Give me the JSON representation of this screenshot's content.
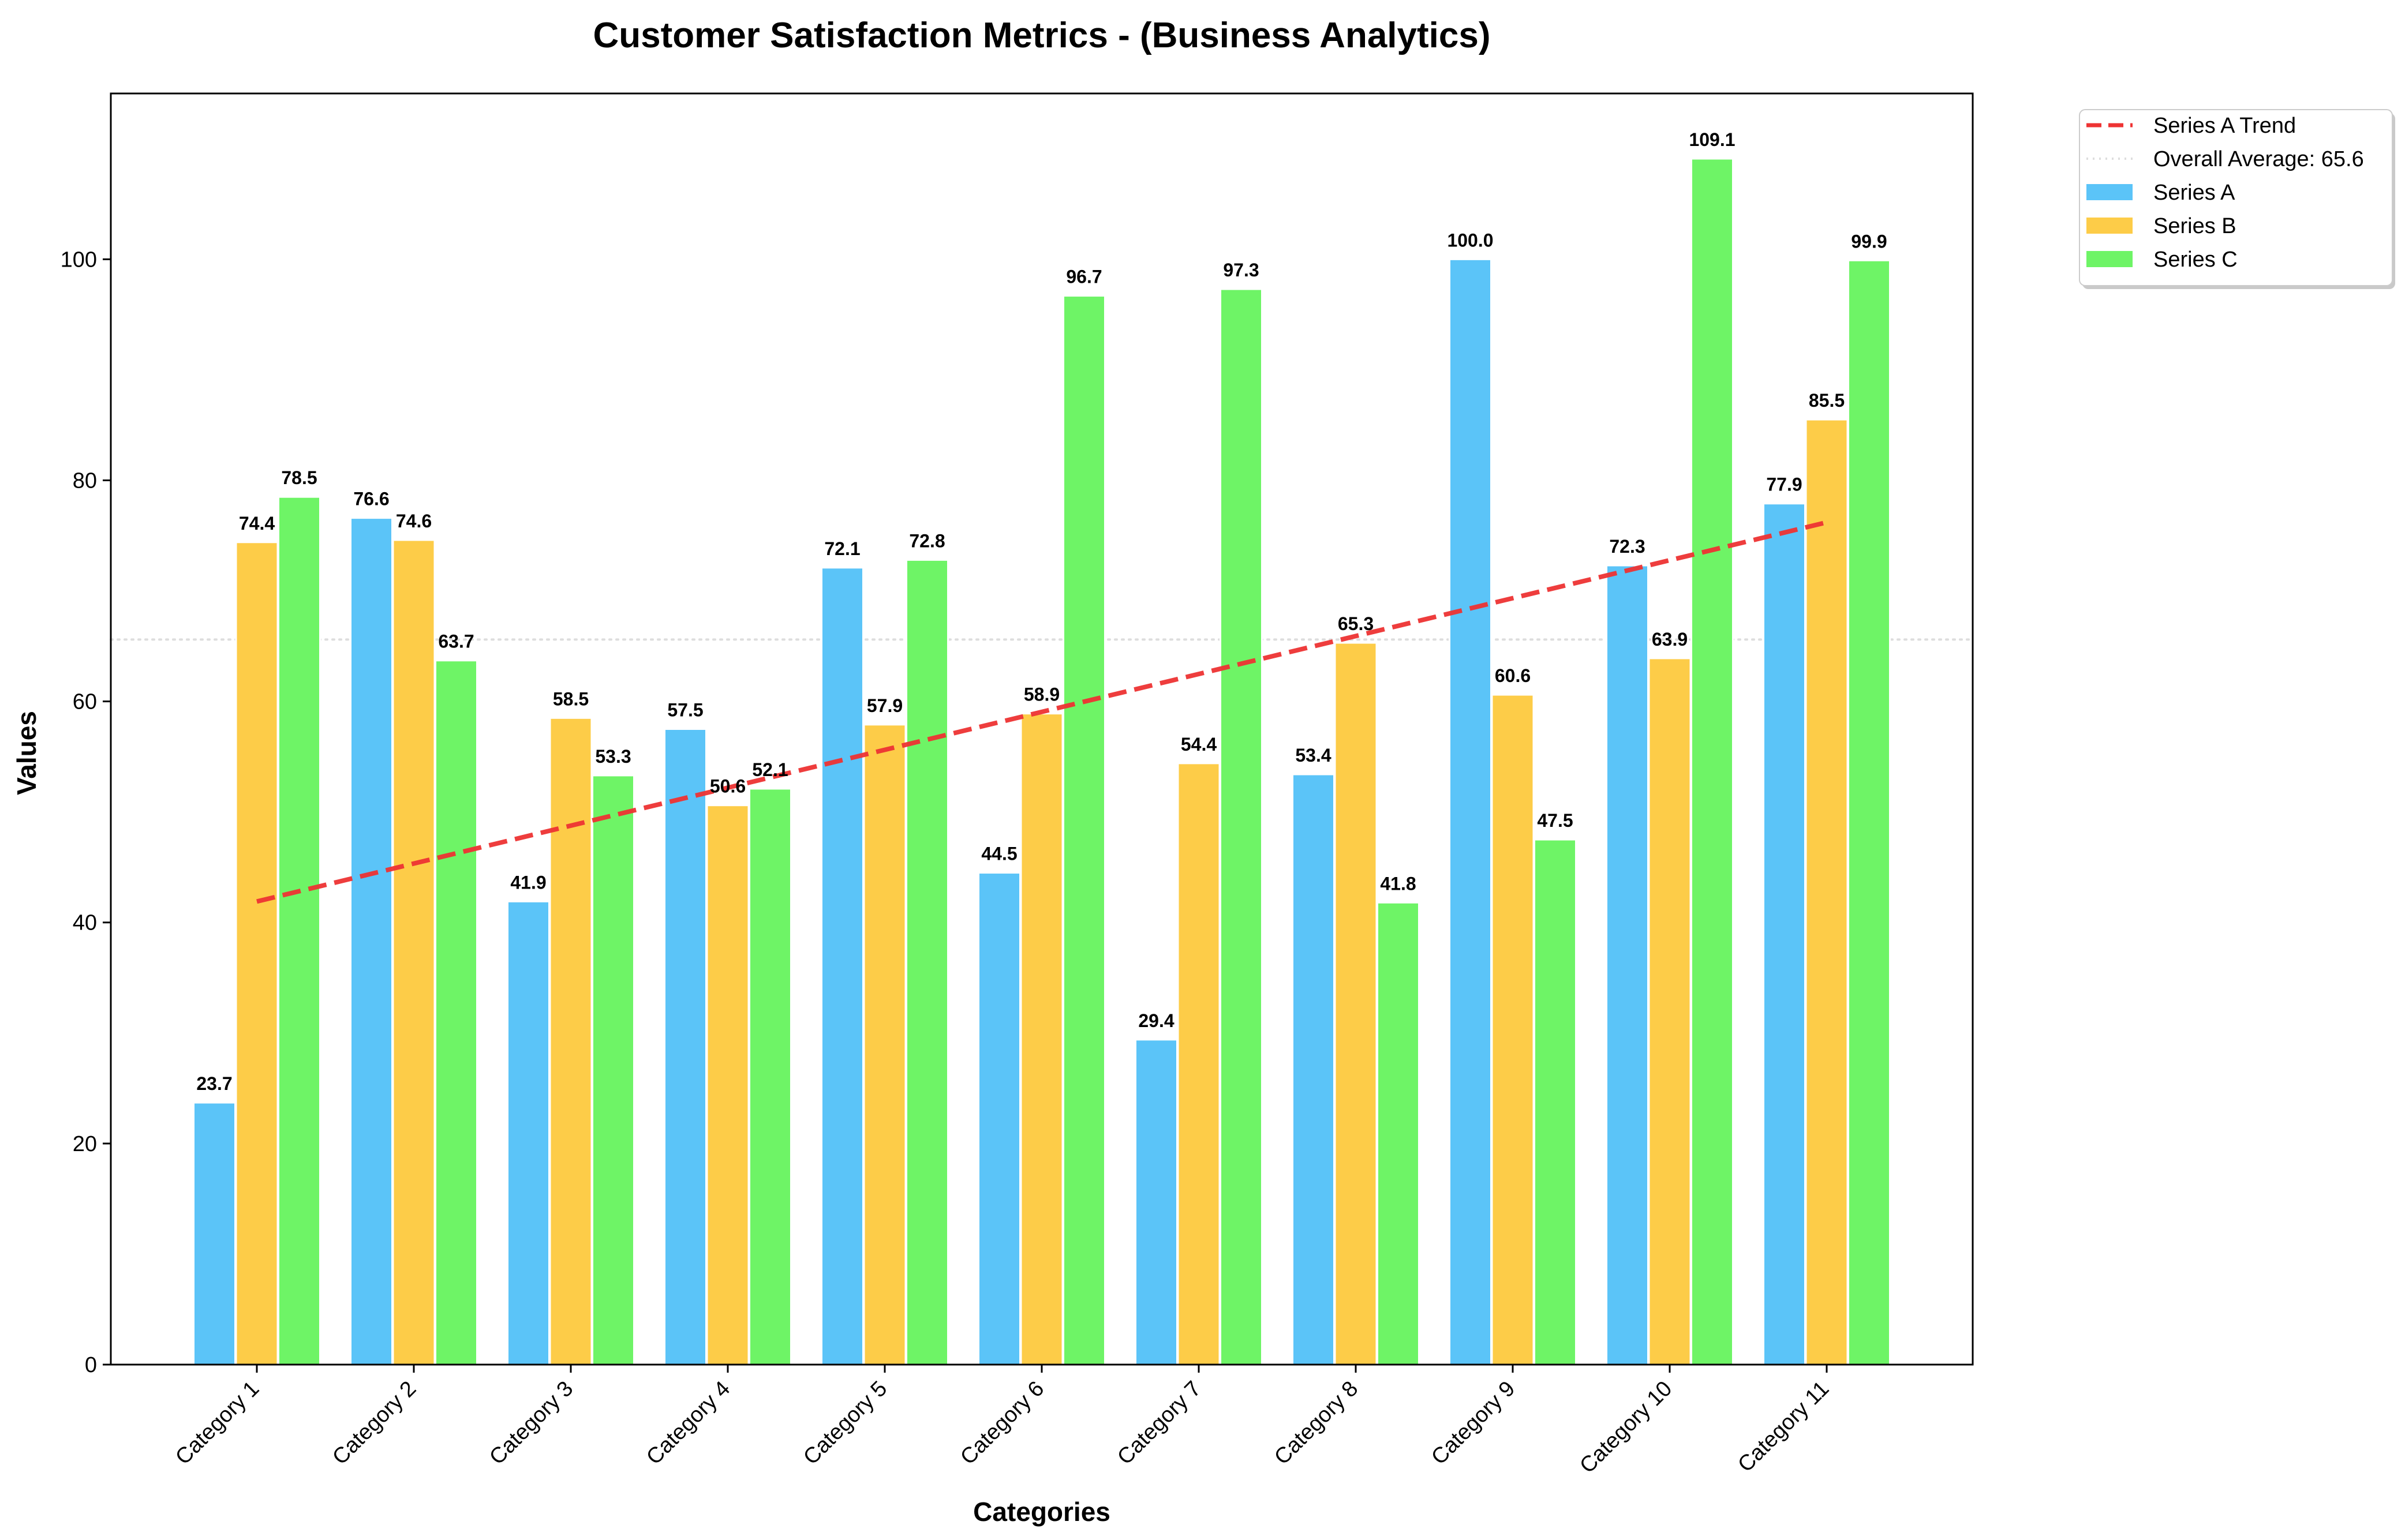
{
  "chart_data": {
    "type": "bar",
    "title": "Customer Satisfaction Metrics - (Business Analytics)",
    "xlabel": "Categories",
    "ylabel": "Values",
    "ylim": [
      0,
      115
    ],
    "yticks": [
      0,
      20,
      40,
      60,
      80,
      100
    ],
    "grid": false,
    "legend_position": "outside-top-right",
    "categories": [
      "Category 1",
      "Category 2",
      "Category 3",
      "Category 4",
      "Category 5",
      "Category 6",
      "Category 7",
      "Category 8",
      "Category 9",
      "Category 10",
      "Category 11"
    ],
    "series": [
      {
        "name": "Series A",
        "color": "#5bc4f8",
        "values": [
          23.7,
          76.6,
          41.9,
          57.5,
          72.1,
          44.5,
          29.4,
          53.4,
          100.0,
          72.3,
          77.9
        ]
      },
      {
        "name": "Series B",
        "color": "#fdcc48",
        "values": [
          74.4,
          74.6,
          58.5,
          50.6,
          57.9,
          58.9,
          54.4,
          65.3,
          60.6,
          63.9,
          85.5
        ]
      },
      {
        "name": "Series C",
        "color": "#6ef466",
        "values": [
          78.5,
          63.7,
          53.3,
          52.1,
          72.8,
          96.7,
          97.3,
          41.8,
          47.5,
          109.1,
          99.9
        ]
      }
    ],
    "trend": {
      "name": "Series A Trend",
      "color": "#ee3333",
      "start": 41.9,
      "end": 76.2
    },
    "average": {
      "name": "Overall Average: 65.6",
      "value": 65.6,
      "color": "#dddddd"
    }
  }
}
